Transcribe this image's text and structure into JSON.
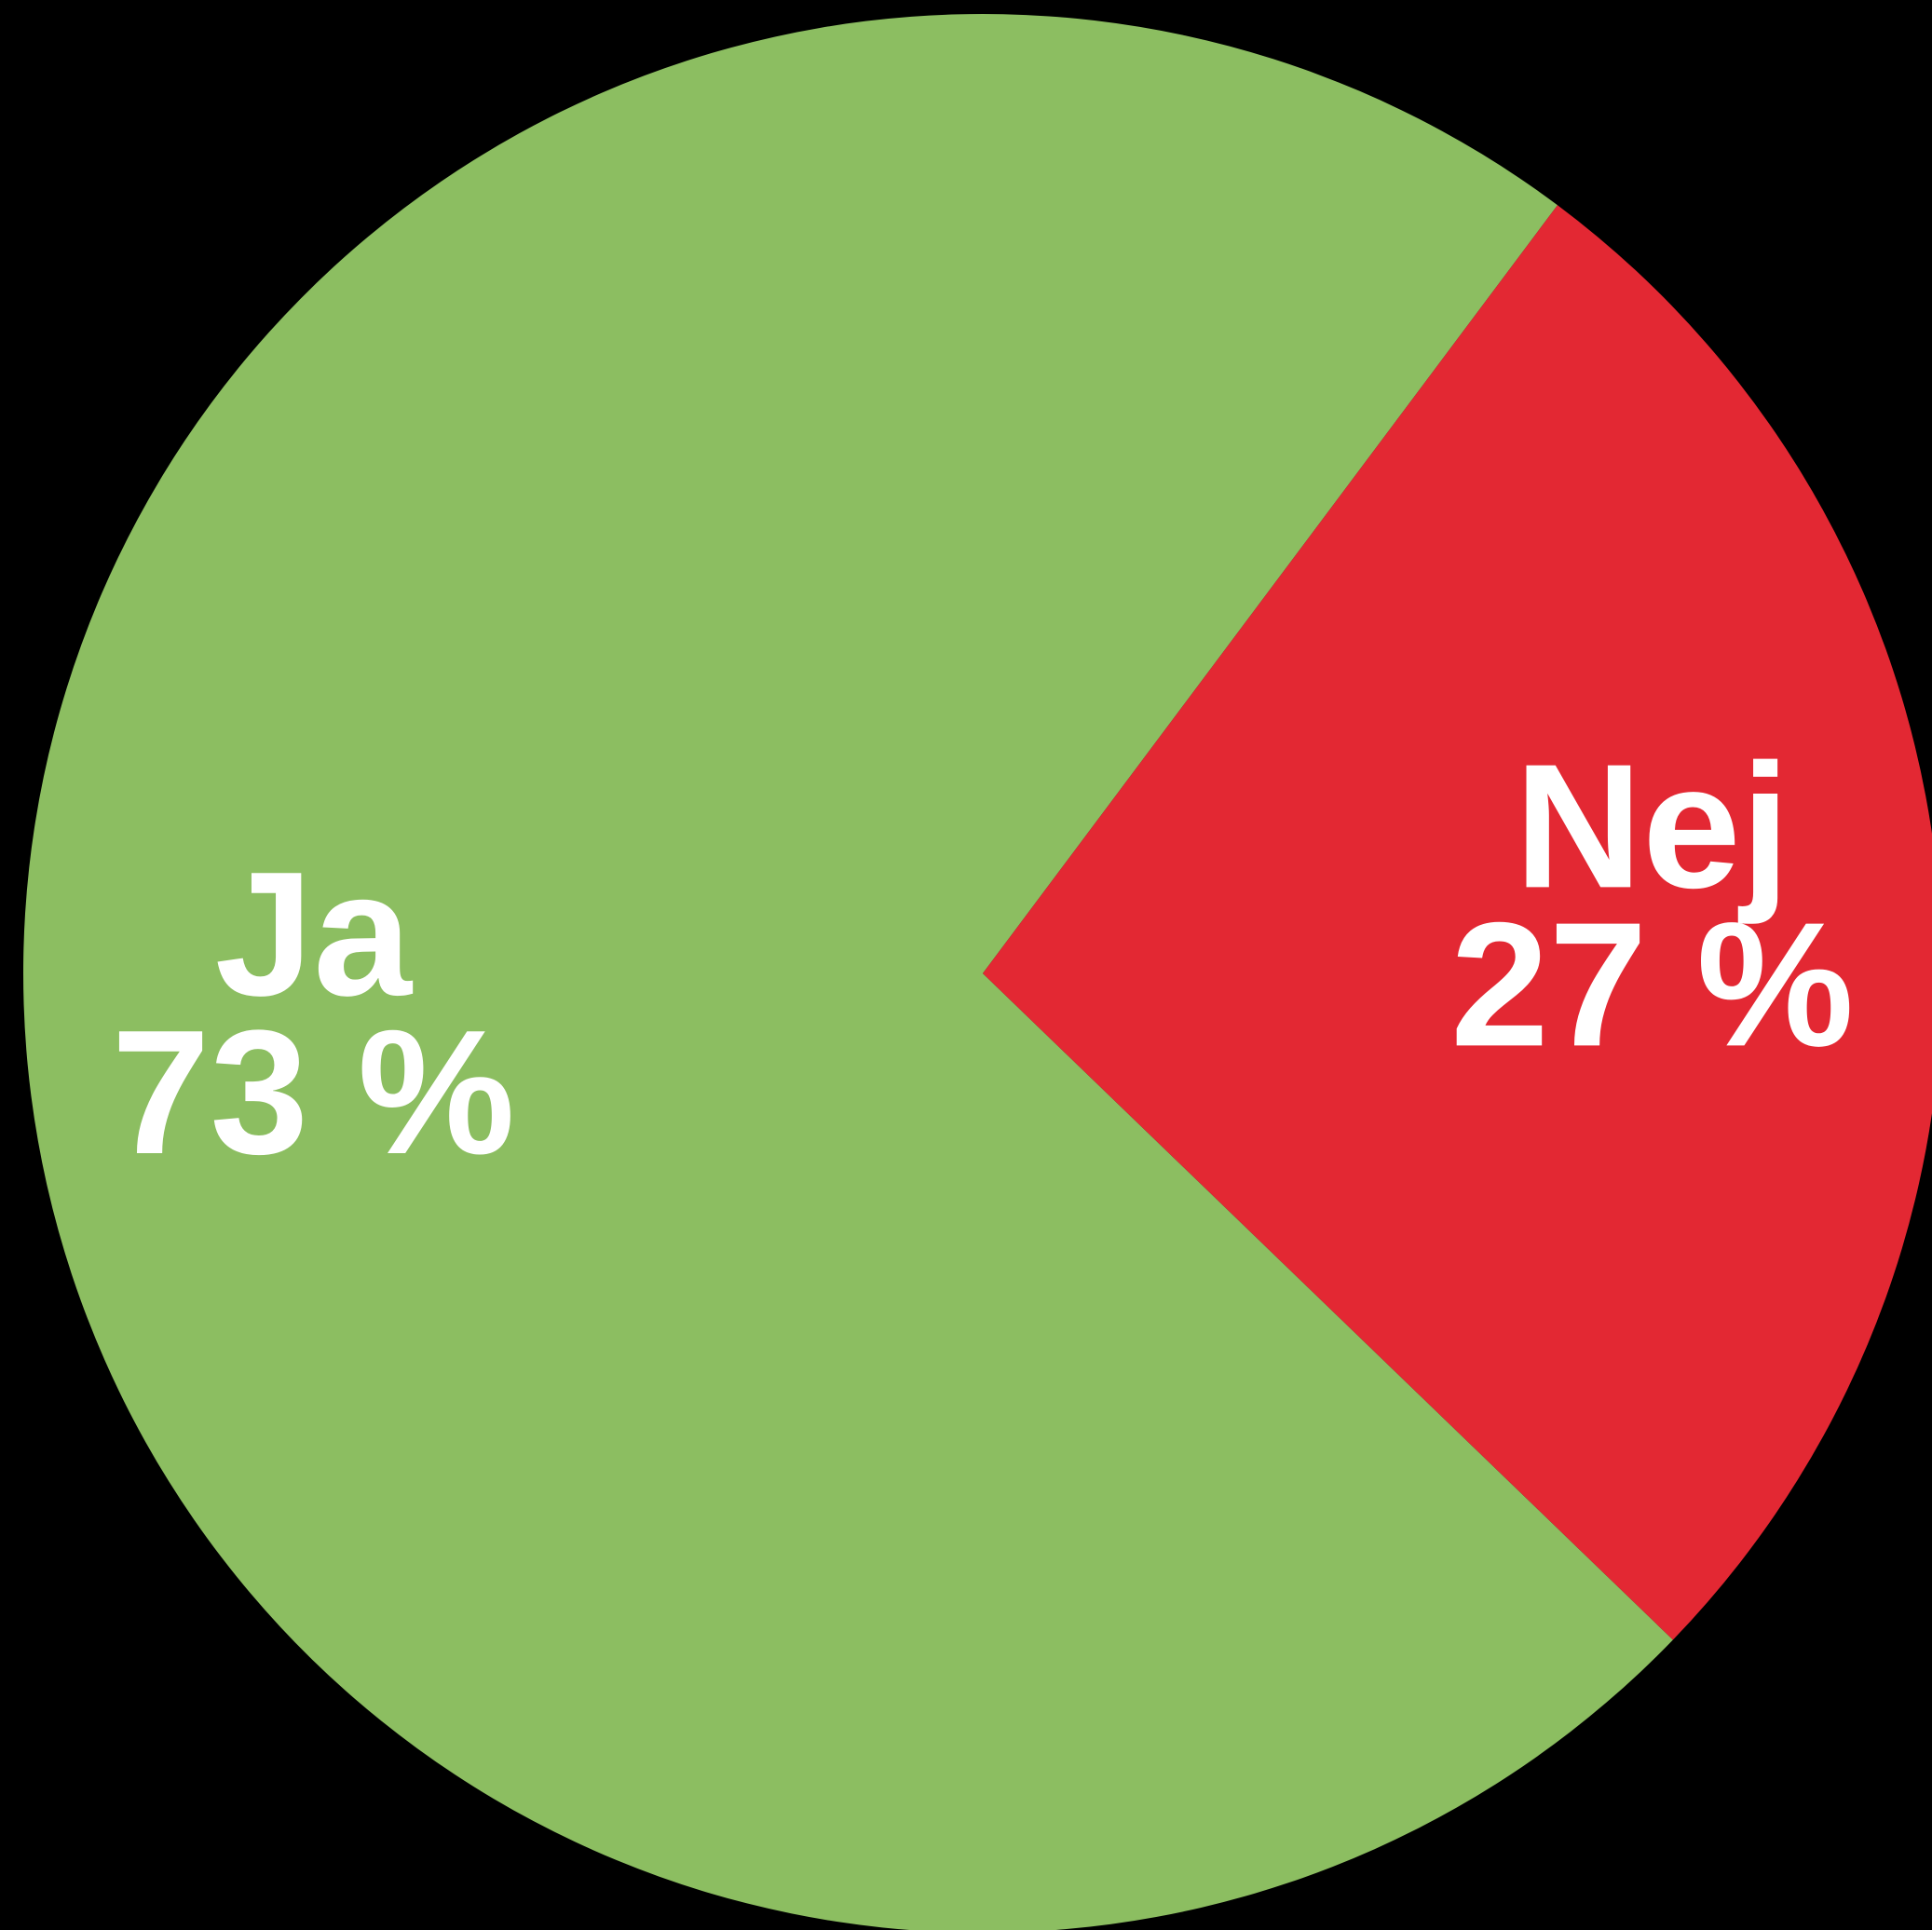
{
  "chart_data": {
    "type": "pie",
    "categories": [
      "Ja",
      "Nej"
    ],
    "values": [
      73,
      27
    ],
    "value_labels": [
      "73 %",
      "27 %"
    ],
    "colors": [
      "#8cbe61",
      "#e32833"
    ]
  }
}
